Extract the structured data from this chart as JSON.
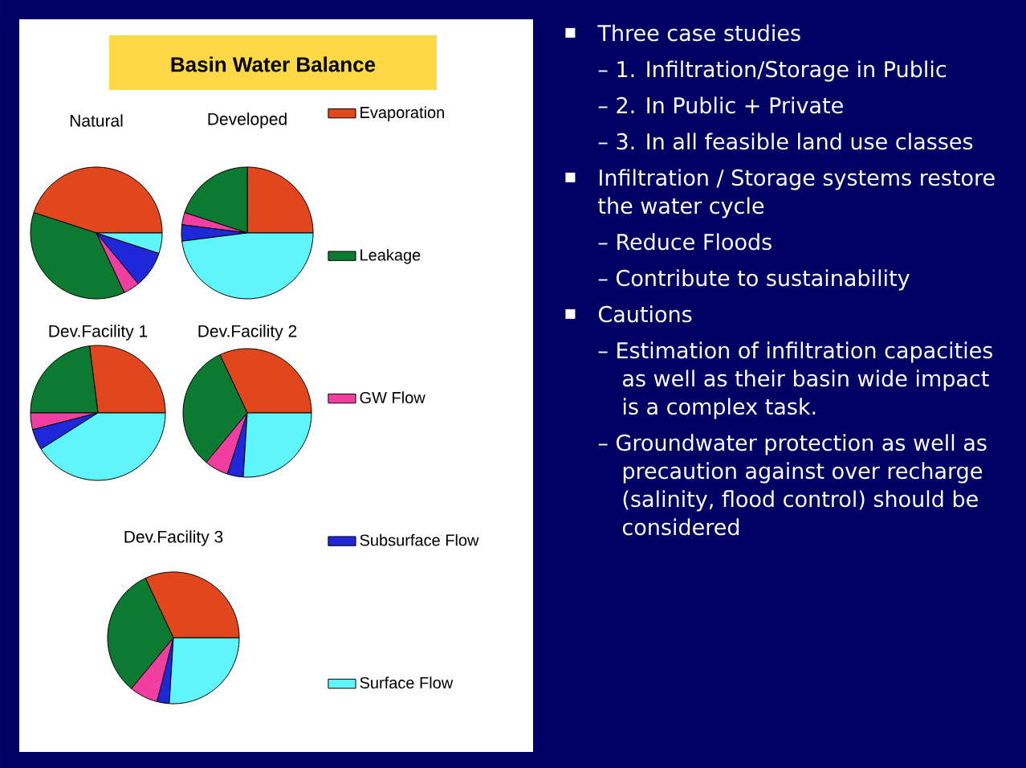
{
  "chart_data": [
    {
      "type": "other",
      "title": "Basin Water Balance"
    },
    {
      "type": "pie",
      "title": "Natural",
      "legend": "right",
      "categories": [
        "Evaporation",
        "Leakage",
        "GW Flow",
        "Subsurface Flow",
        "Surface Flow"
      ],
      "values": [
        45,
        37,
        4,
        9,
        5
      ],
      "colors": [
        "#e2461c",
        "#0c7a30",
        "#f23ea0",
        "#1e28d8",
        "#5ef6fa"
      ]
    },
    {
      "type": "pie",
      "title": "Developed",
      "categories": [
        null,
        null,
        null,
        null,
        null
      ],
      "values": [
        25,
        20,
        3,
        4,
        48
      ],
      "colors": [
        "#e2461c",
        "#0c7a30",
        "#f23ea0",
        "#1e28d8",
        "#5ef6fa"
      ]
    },
    {
      "type": "pie",
      "title": "Dev.Facility 1",
      "categories": [
        null,
        null,
        null,
        null,
        null
      ],
      "values": [
        27,
        23,
        4,
        5,
        41
      ],
      "colors": [
        "#e2461c",
        "#0c7a30",
        "#f23ea0",
        "#1e28d8",
        "#5ef6fa"
      ]
    },
    {
      "type": "pie",
      "title": "Dev.Facility 2",
      "categories": [
        null,
        null,
        null,
        null,
        null
      ],
      "values": [
        32,
        32,
        6,
        4,
        26
      ],
      "colors": [
        "#e2461c",
        "#0c7a30",
        "#f23ea0",
        "#1e28d8",
        "#5ef6fa"
      ]
    },
    {
      "type": "pie",
      "title": "Dev.Facility 3",
      "categories": [
        null,
        null,
        null,
        null,
        null
      ],
      "values": [
        32,
        32,
        7,
        3,
        26
      ],
      "colors": [
        "#e2461c",
        "#0c7a30",
        "#f23ea0",
        "#1e28d8",
        "#5ef6fa"
      ]
    },
    {
      "type": "other",
      "annotations": [
        "Three case studies",
        "– 1. Infiltration/Storage in Public",
        "– 2. In Public + Private",
        "– 3. In all feasible land use classes",
        "Infiltration / Storage systems restore the water cycle",
        "– Reduce Floods",
        "– Contribute to sustainability",
        "Cautions",
        "– Estimation of infiltration capacities as well as their basin wide impact is a complex task.",
        "– Groundwater protection as well as precaution against over recharge (salinity, flood control) should be considered"
      ]
    }
  ]
}
